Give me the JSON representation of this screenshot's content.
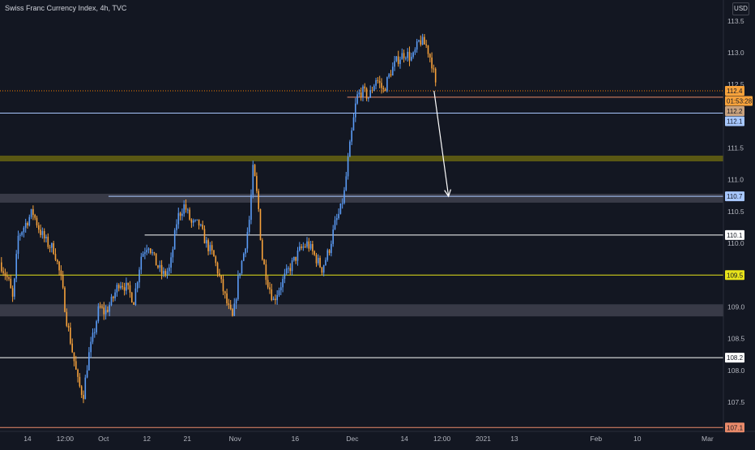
{
  "header": {
    "title": "Swiss Franc Currency Index, 4h, TVC",
    "currency_button": "USD"
  },
  "colors": {
    "background": "#131722",
    "up_candle": "#5b9cf6",
    "down_candle": "#f7a23b",
    "axis_text": "#b2b5be",
    "olive_zone": "#5e5c14",
    "gray_zone": "#3a3c4a",
    "line_white": "#ffffff",
    "line_yellow": "#e8e31a",
    "line_lightblue": "#a8c8ff",
    "line_orange_dotted": "#f57c00",
    "line_salmon": "#e98a6a",
    "arrow": "#ffffff"
  },
  "chart_data": {
    "type": "candlestick",
    "title": "Swiss Franc Currency Index, 4h, TVC",
    "ylim": [
      107.04,
      113.83
    ],
    "y_ticks": [
      "113.5",
      "113.0",
      "112.5",
      "111.5",
      "111.0",
      "110.5",
      "110.0",
      "109.0",
      "108.5",
      "108.0",
      "107.5"
    ],
    "x_ticks": [
      "14",
      "12:00",
      "Oct",
      "12",
      "21",
      "Nov",
      "16",
      "Dec",
      "14",
      "12:00",
      "2021",
      "13",
      "Feb",
      "10",
      "Mar"
    ],
    "price_labels": [
      {
        "text": "112.4",
        "value": 112.4,
        "kind": "current"
      },
      {
        "text": "01:53:28",
        "value": 112.3,
        "kind": "countdown"
      },
      {
        "text": "112.2",
        "value": 112.2,
        "kind": "level"
      },
      {
        "text": "112.1",
        "value": 112.05,
        "kind": "level"
      },
      {
        "text": "110.7",
        "value": 110.74,
        "kind": "level"
      },
      {
        "text": "110.1",
        "value": 110.13,
        "kind": "level"
      },
      {
        "text": "109.5",
        "value": 109.5,
        "kind": "level"
      },
      {
        "text": "108.2",
        "value": 108.2,
        "kind": "level"
      },
      {
        "text": "107.1",
        "value": 107.1,
        "kind": "level"
      }
    ],
    "zones": [
      {
        "name": "resistance-zone",
        "from": 111.29,
        "to": 111.38,
        "color": "olive"
      },
      {
        "name": "support-zone-upper",
        "from": 110.64,
        "to": 110.78,
        "color": "gray"
      },
      {
        "name": "support-zone-lower",
        "from": 108.85,
        "to": 109.04,
        "color": "gray"
      }
    ],
    "horizontal_lines": [
      {
        "value": 112.4,
        "style": "dotted",
        "color": "orange",
        "x_start": 0.0
      },
      {
        "value": 112.3,
        "style": "solid",
        "color": "salmon",
        "x_start": 0.48
      },
      {
        "value": 112.05,
        "style": "solid",
        "color": "lightblue",
        "x_start": 0.0
      },
      {
        "value": 110.74,
        "style": "solid",
        "color": "lightblue",
        "x_start": 0.15
      },
      {
        "value": 110.13,
        "style": "solid",
        "color": "white",
        "x_start": 0.2
      },
      {
        "value": 109.5,
        "style": "solid",
        "color": "yellow",
        "x_start": 0.0
      },
      {
        "value": 108.2,
        "style": "solid",
        "color": "white",
        "x_start": 0.0
      },
      {
        "value": 107.1,
        "style": "solid",
        "color": "salmon",
        "x_start": 0.0
      }
    ],
    "arrow": {
      "from_value": 112.4,
      "to_value": 110.74,
      "from_x": 0.6,
      "to_x": 0.62
    },
    "price_path": [
      [
        0.0,
        109.7
      ],
      [
        0.012,
        109.4
      ],
      [
        0.018,
        109.1
      ],
      [
        0.025,
        110.1
      ],
      [
        0.035,
        110.3
      ],
      [
        0.045,
        110.5
      ],
      [
        0.055,
        110.2
      ],
      [
        0.065,
        110.0
      ],
      [
        0.075,
        109.9
      ],
      [
        0.085,
        109.4
      ],
      [
        0.092,
        108.8
      ],
      [
        0.1,
        108.3
      ],
      [
        0.108,
        107.8
      ],
      [
        0.115,
        107.6
      ],
      [
        0.122,
        108.2
      ],
      [
        0.13,
        108.6
      ],
      [
        0.137,
        109.0
      ],
      [
        0.145,
        108.9
      ],
      [
        0.155,
        109.1
      ],
      [
        0.165,
        109.4
      ],
      [
        0.175,
        109.3
      ],
      [
        0.185,
        109.1
      ],
      [
        0.195,
        109.8
      ],
      [
        0.205,
        110.0
      ],
      [
        0.215,
        109.7
      ],
      [
        0.225,
        109.5
      ],
      [
        0.235,
        109.6
      ],
      [
        0.245,
        110.4
      ],
      [
        0.255,
        110.6
      ],
      [
        0.265,
        110.3
      ],
      [
        0.275,
        110.3
      ],
      [
        0.285,
        110.0
      ],
      [
        0.295,
        109.8
      ],
      [
        0.305,
        109.4
      ],
      [
        0.315,
        109.0
      ],
      [
        0.322,
        108.8
      ],
      [
        0.33,
        109.5
      ],
      [
        0.338,
        109.9
      ],
      [
        0.345,
        110.4
      ],
      [
        0.35,
        111.2
      ],
      [
        0.357,
        110.6
      ],
      [
        0.362,
        109.8
      ],
      [
        0.37,
        109.4
      ],
      [
        0.378,
        109.1
      ],
      [
        0.386,
        109.3
      ],
      [
        0.395,
        109.5
      ],
      [
        0.405,
        109.7
      ],
      [
        0.415,
        109.9
      ],
      [
        0.425,
        110.0
      ],
      [
        0.435,
        109.8
      ],
      [
        0.445,
        109.6
      ],
      [
        0.455,
        109.9
      ],
      [
        0.463,
        110.3
      ],
      [
        0.47,
        110.5
      ],
      [
        0.476,
        110.8
      ],
      [
        0.481,
        111.3
      ],
      [
        0.487,
        111.8
      ],
      [
        0.493,
        112.3
      ],
      [
        0.5,
        112.4
      ],
      [
        0.51,
        112.3
      ],
      [
        0.52,
        112.6
      ],
      [
        0.53,
        112.4
      ],
      [
        0.54,
        112.7
      ],
      [
        0.55,
        112.9
      ],
      [
        0.56,
        113.0
      ],
      [
        0.57,
        112.9
      ],
      [
        0.58,
        113.2
      ],
      [
        0.59,
        113.1
      ],
      [
        0.598,
        112.8
      ],
      [
        0.603,
        112.4
      ]
    ]
  }
}
